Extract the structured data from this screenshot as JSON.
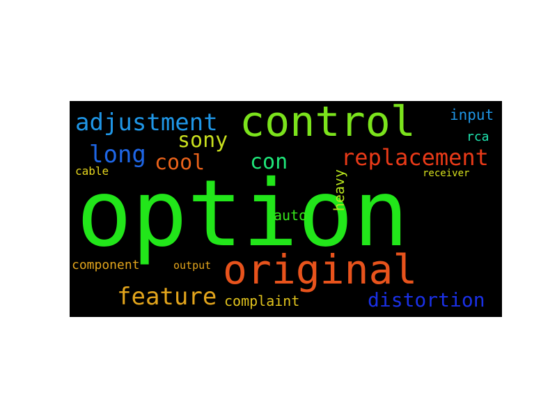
{
  "wordcloud": {
    "background": "#000000",
    "words": [
      {
        "key": "option",
        "text": "option",
        "color": "#22e61a"
      },
      {
        "key": "control",
        "text": "control",
        "color": "#7be31c"
      },
      {
        "key": "original",
        "text": "original",
        "color": "#e8531c"
      },
      {
        "key": "adjustment",
        "text": "adjustment",
        "color": "#1f96e6"
      },
      {
        "key": "replacement",
        "text": "replacement",
        "color": "#ea3a18"
      },
      {
        "key": "long",
        "text": "long",
        "color": "#1e66e6"
      },
      {
        "key": "sony",
        "text": "sony",
        "color": "#c8df1e"
      },
      {
        "key": "cool",
        "text": "cool",
        "color": "#ea621a"
      },
      {
        "key": "con",
        "text": "con",
        "color": "#1fe67a"
      },
      {
        "key": "feature",
        "text": "feature",
        "color": "#e3a51c"
      },
      {
        "key": "distortion",
        "text": "distortion",
        "color": "#1a30e6"
      },
      {
        "key": "complaint",
        "text": "complaint",
        "color": "#e0c21d"
      },
      {
        "key": "component",
        "text": "component",
        "color": "#e3a51c"
      },
      {
        "key": "input",
        "text": "input",
        "color": "#1f96e6"
      },
      {
        "key": "rca",
        "text": "rca",
        "color": "#1fe6b0"
      },
      {
        "key": "cable",
        "text": "cable",
        "color": "#e6d61e"
      },
      {
        "key": "receiver",
        "text": "receiver",
        "color": "#d8e21d"
      },
      {
        "key": "auto",
        "text": "auto",
        "color": "#36e61c"
      },
      {
        "key": "heavy",
        "text": "heavy",
        "color": "#b8e61e"
      },
      {
        "key": "output",
        "text": "output",
        "color": "#e3a51c"
      }
    ]
  }
}
